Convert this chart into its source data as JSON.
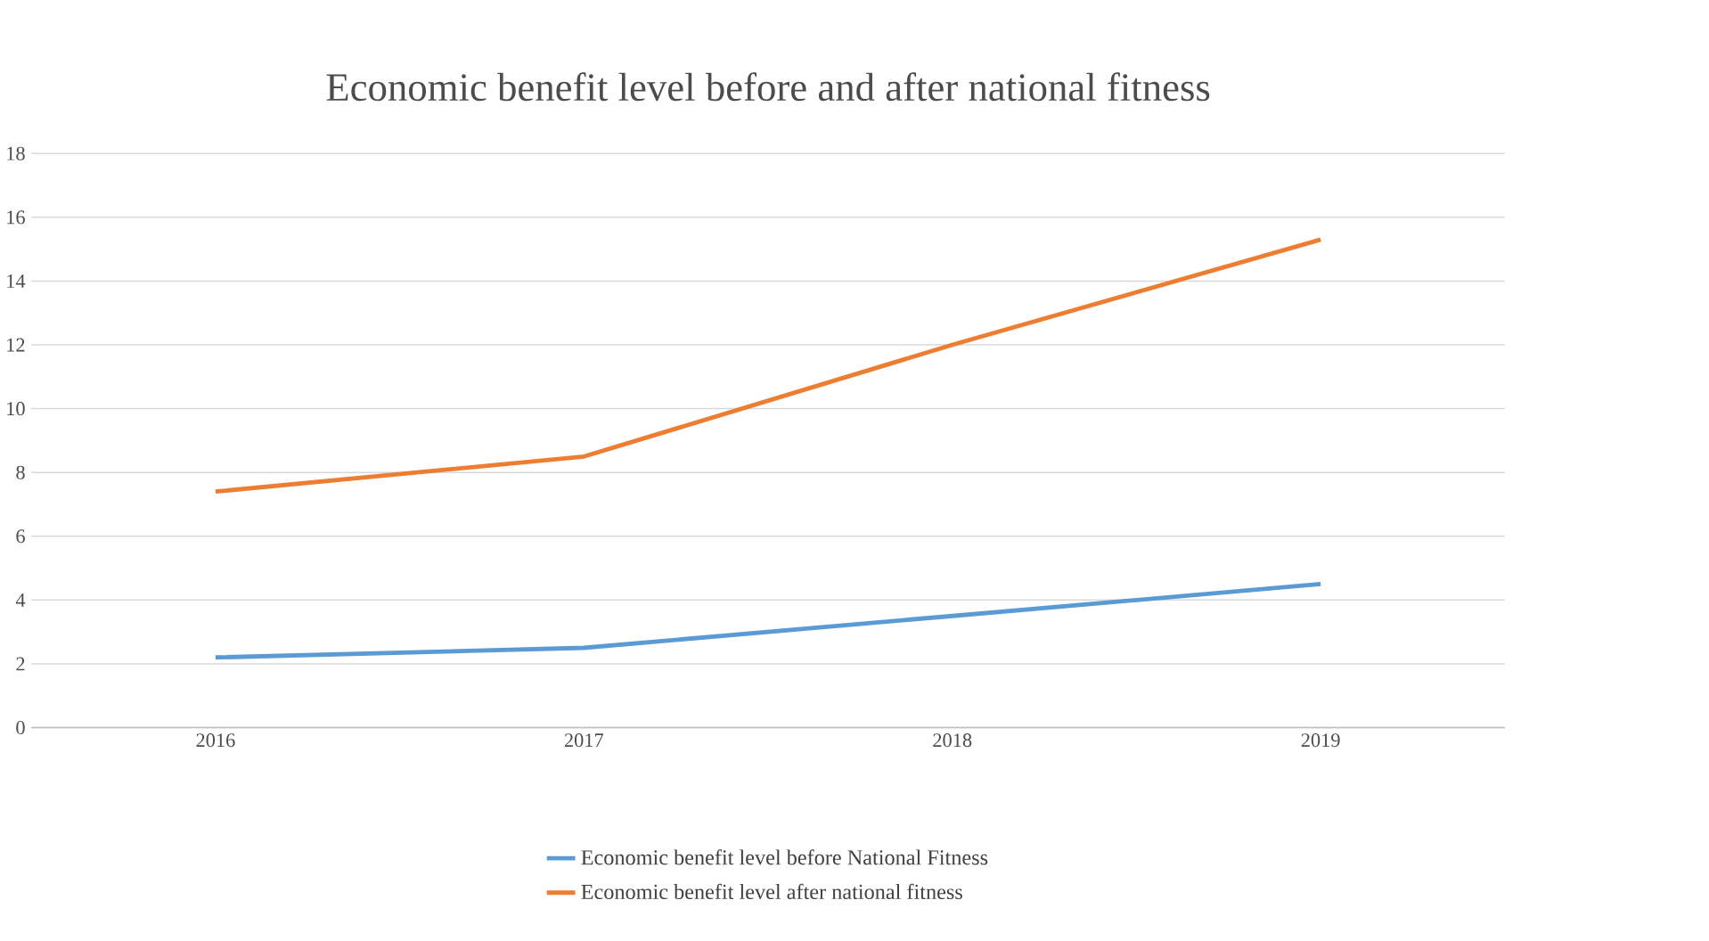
{
  "chart_data": {
    "type": "line",
    "title": "Economic benefit level before and after national fitness",
    "categories": [
      "2016",
      "2017",
      "2018",
      "2019"
    ],
    "series": [
      {
        "name": "Economic benefit level before National Fitness",
        "color": "#5b9bd5",
        "values": [
          2.2,
          2.5,
          3.5,
          4.5
        ]
      },
      {
        "name": "Economic benefit level after national fitness",
        "color": "#ed7d31",
        "values": [
          7.4,
          8.5,
          12.0,
          15.3
        ]
      }
    ],
    "ylim": [
      0,
      18
    ],
    "yticks": [
      0,
      2,
      4,
      6,
      8,
      10,
      12,
      14,
      16,
      18
    ],
    "grid": "y",
    "legend": "bottom"
  }
}
